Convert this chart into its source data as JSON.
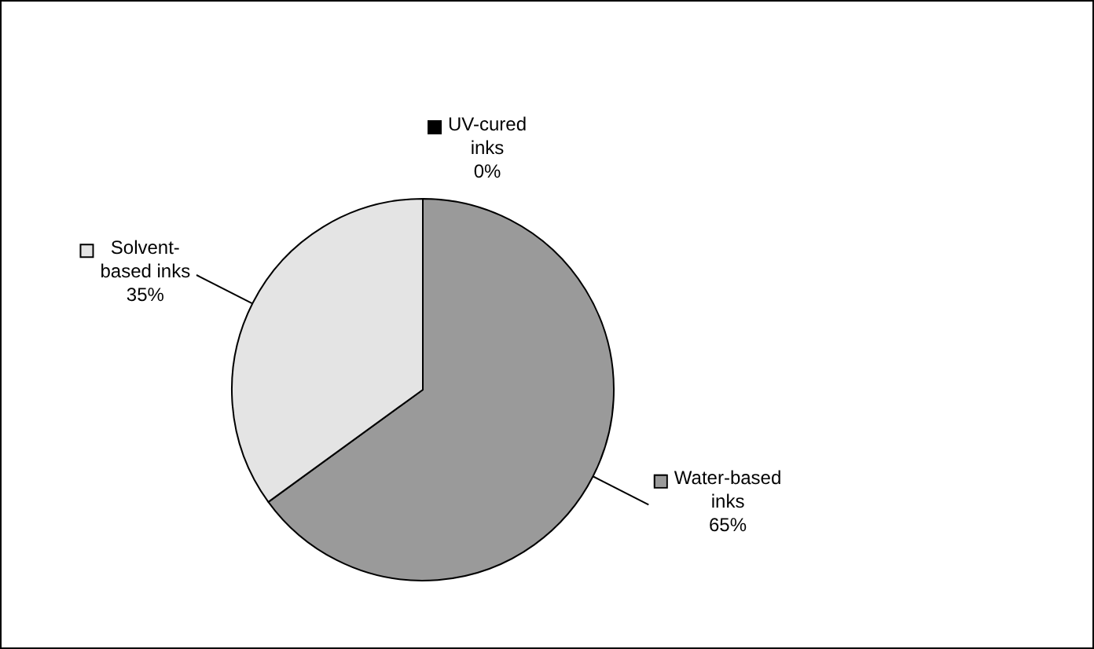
{
  "chart_data": {
    "type": "pie",
    "categories": [
      "UV-cured inks",
      "Water-based inks",
      "Solvent-based inks"
    ],
    "values": [
      0,
      65,
      35
    ],
    "colors": [
      "#000000",
      "#9a9a9a",
      "#e4e4e4"
    ],
    "value_labels": [
      "0%",
      "65%",
      "35%"
    ],
    "legend": "right"
  }
}
